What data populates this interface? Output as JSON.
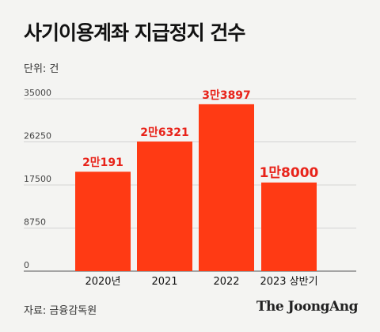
{
  "title": "사기이용계좌 지급정지 건수",
  "unit_label": "단위: 건",
  "source": "자료: 금융감독원",
  "brand": "The JoongAng",
  "colors": {
    "bar": "#ff3a14",
    "label": "#e8231a",
    "grid": "#c9c9c9",
    "axis": "#555555"
  },
  "chart_data": {
    "type": "bar",
    "title": "사기이용계좌 지급정지 건수",
    "ylabel": "단위: 건",
    "categories": [
      "2020년",
      "2021",
      "2022",
      "2023 상반기"
    ],
    "values": [
      20191,
      26321,
      33897,
      18000
    ],
    "data_labels": [
      "2만191",
      "2만6321",
      "3만3897",
      "1만8000"
    ],
    "yticks": [
      0,
      8750,
      17500,
      26250,
      35000
    ],
    "ylim": [
      0,
      35000
    ],
    "grid": true
  }
}
